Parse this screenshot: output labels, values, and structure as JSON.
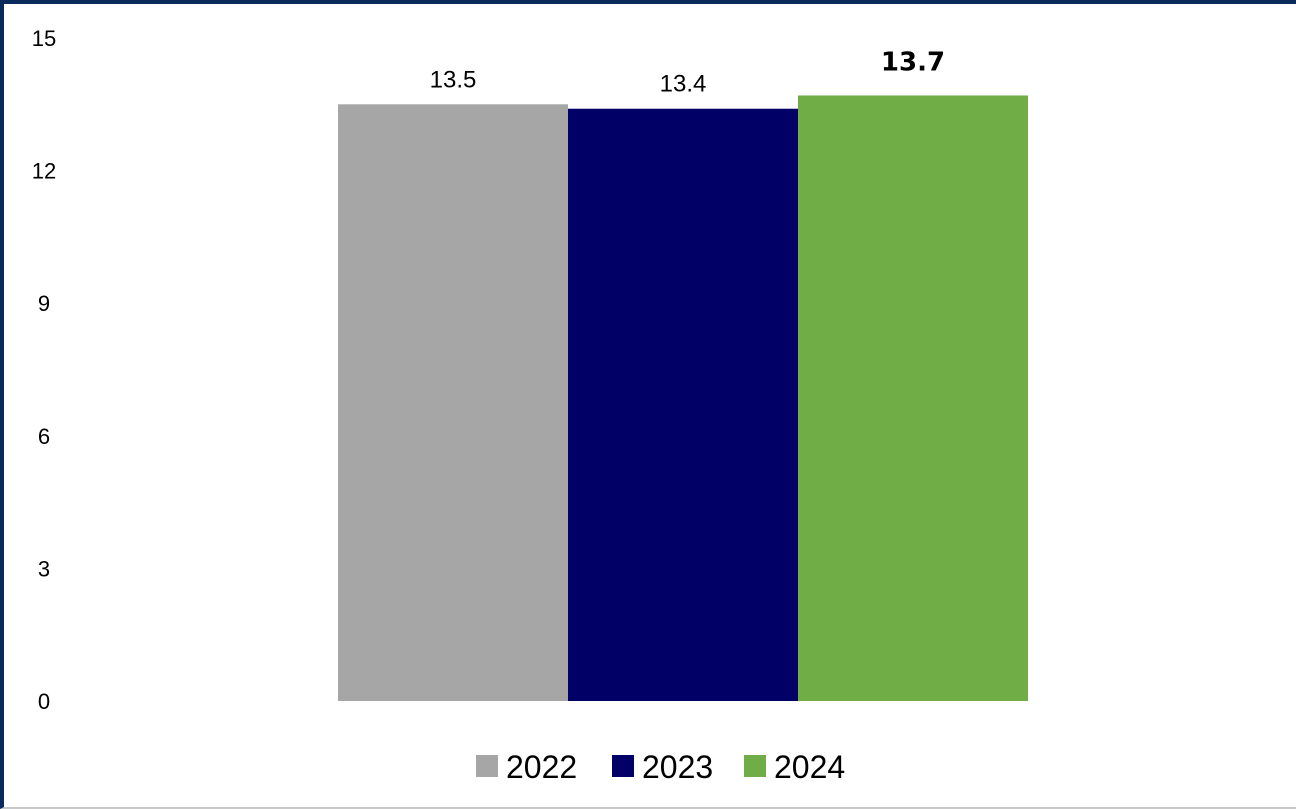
{
  "chart_data": {
    "type": "bar",
    "title": "",
    "xlabel": "",
    "ylabel": "",
    "ylim": [
      0,
      15
    ],
    "yticks": [
      0,
      3,
      6,
      9,
      12,
      15
    ],
    "grid": false,
    "legend_position": "bottom",
    "series": [
      {
        "name": "2022",
        "values": [
          13.5
        ],
        "label": "13.5",
        "color": "#a6a6a6",
        "bold_label": false
      },
      {
        "name": "2023",
        "values": [
          13.4
        ],
        "label": "13.4",
        "color": "#000066",
        "bold_label": false
      },
      {
        "name": "2024",
        "values": [
          13.7
        ],
        "label": "13.7",
        "color": "#70ad47",
        "bold_label": true
      }
    ]
  },
  "frame_color": "#0b2a5c"
}
